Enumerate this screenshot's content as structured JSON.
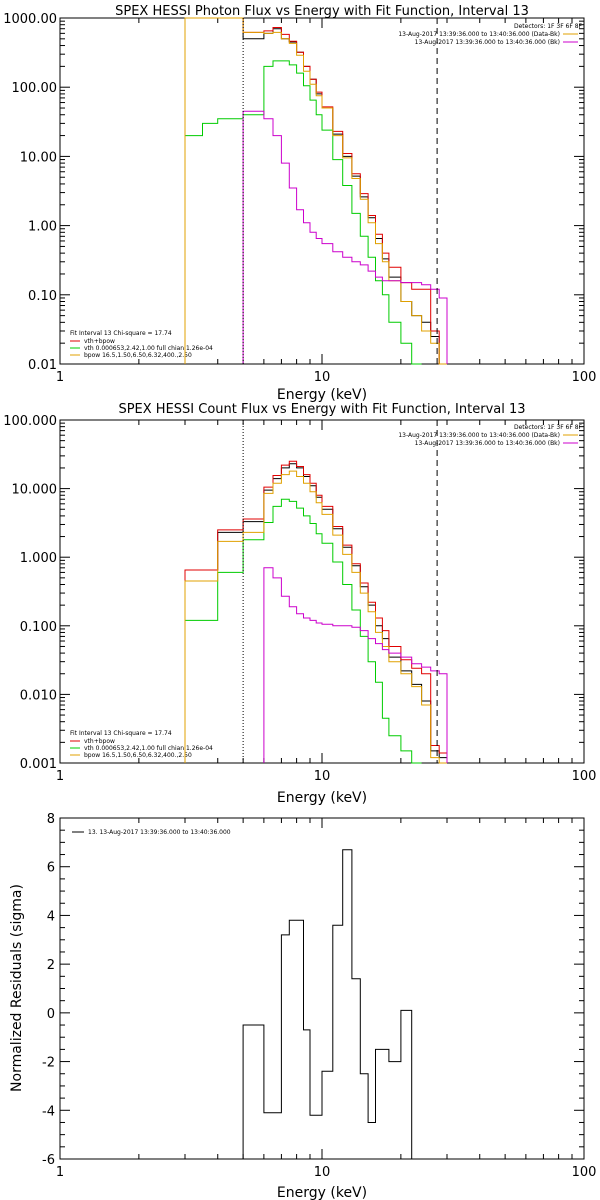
{
  "colors": {
    "bg": "#ffffff",
    "axis": "#000000",
    "total": "#000000",
    "sum": "#e00000",
    "vth": "#00cc00",
    "bpow": "#e0a000",
    "bk": "#cc00cc"
  },
  "chart_data": [
    {
      "type": "line",
      "title": "SPEX HESSI Photon Flux vs Energy with Fit Function, Interval 13",
      "xlabel": "Energy (keV)",
      "ylabel": "",
      "xscale": "log",
      "yscale": "log",
      "xlim": [
        1,
        100
      ],
      "ylim": [
        0.01,
        1000
      ],
      "xticks": [
        "1",
        "10",
        "100"
      ],
      "yticks": [
        "0.01",
        "0.10",
        "1.00",
        "10.00",
        "100.00",
        "1000.00"
      ],
      "top_right": [
        "Detectors: 1F 3F 6F 8F",
        "13-Aug-2017 13:39:36.000 to 13:40:36.000 (Data-Bk)",
        "13-Aug-2017 13:39:36.000 to 13:40:36.000 (Bk)"
      ],
      "legend": [
        "Fit Interval 13   Chi-square = 17.74",
        "vth+bpow",
        "vth 0.000653,2.42,1.00  full chian 1.26e-04",
        "bpow 16.5,1.50,6.50,6.32,400.,2.50"
      ],
      "edges": [
        3,
        3.5,
        4,
        4.5,
        5,
        6,
        6.5,
        7,
        7.5,
        8,
        8.5,
        9,
        9.5,
        10,
        11,
        12,
        13,
        14,
        15,
        16,
        17,
        18,
        20,
        22,
        24,
        26,
        28,
        30
      ],
      "series": [
        {
          "key": "total",
          "values": [
            1000,
            1000,
            1000,
            1000,
            500,
            600,
            700,
            500,
            450,
            320,
            200,
            130,
            80,
            50,
            21,
            10,
            5.2,
            2.6,
            1.3,
            0.65,
            0.33,
            0.18,
            0.08,
            0.05,
            0.04,
            0.025,
            0.009
          ]
        },
        {
          "key": "sum",
          "values": [
            1000,
            1000,
            1000,
            1000,
            620,
            650,
            730,
            580,
            460,
            320,
            200,
            130,
            85,
            52,
            23,
            11,
            5.6,
            2.9,
            1.4,
            0.75,
            0.4,
            0.25,
            0.15,
            0.12,
            0.12,
            0.03,
            0.01
          ]
        },
        {
          "key": "vth",
          "values": [
            20,
            30,
            35,
            35,
            40,
            200,
            240,
            240,
            210,
            160,
            105,
            65,
            40,
            24,
            9,
            3.8,
            1.5,
            0.7,
            0.35,
            0.16,
            0.1,
            0.04,
            0.02,
            0.01
          ]
        },
        {
          "key": "bpow",
          "values": [
            1000,
            1000,
            1000,
            1000,
            620,
            600,
            620,
            500,
            430,
            290,
            170,
            110,
            75,
            50,
            20,
            9.5,
            4.8,
            2.4,
            1.1,
            0.55,
            0.3,
            0.16,
            0.08,
            0.05,
            0.03,
            0.02,
            0.01
          ]
        },
        {
          "key": "bk",
          "start": 4,
          "values": [
            45,
            35,
            20,
            8,
            3.5,
            1.7,
            1.1,
            0.8,
            0.65,
            0.55,
            0.42,
            0.35,
            0.3,
            0.27,
            0.22,
            0.18,
            0.16,
            0.16,
            0.15,
            0.15,
            0.14,
            0.12,
            0.09
          ]
        }
      ],
      "vlines": [
        {
          "x": 5,
          "style": "dotted"
        },
        {
          "x": 27.5,
          "style": "dashed"
        }
      ]
    },
    {
      "type": "line",
      "title": "SPEX HESSI Count Flux vs Energy with Fit Function, Interval 13",
      "xlabel": "Energy (keV)",
      "ylabel": "",
      "xscale": "log",
      "yscale": "log",
      "xlim": [
        1,
        100
      ],
      "ylim": [
        0.001,
        100
      ],
      "xticks": [
        "1",
        "10",
        "100"
      ],
      "yticks": [
        "0.001",
        "0.010",
        "0.100",
        "1.000",
        "10.000",
        "100.000"
      ],
      "top_right": [
        "Detectors: 1F 3F 6F 8F",
        "13-Aug-2017 13:39:36.000 to 13:40:36.000 (Data-Bk)",
        "13-Aug-2017 13:39:36.000 to 13:40:36.000 (Bk)"
      ],
      "legend": [
        "Fit Interval 13   Chi-square = 17.74",
        "vth+bpow",
        "vth 0.000653,2.42,1.00  full chian 1.26e-04",
        "bpow 16.5,1.50,6.50,6.32,400.,2.50"
      ],
      "edges": [
        3,
        4,
        5,
        6,
        6.5,
        7,
        7.5,
        8,
        8.5,
        9,
        9.5,
        10,
        11,
        12,
        13,
        14,
        15,
        16,
        17,
        18,
        20,
        22,
        24,
        26,
        28,
        30
      ],
      "series": [
        {
          "key": "total",
          "values": [
            0.65,
            2.3,
            3.3,
            9.5,
            14,
            20,
            23,
            20,
            15,
            11,
            7.5,
            5,
            2.6,
            1.4,
            0.75,
            0.37,
            0.2,
            0.1,
            0.065,
            0.035,
            0.022,
            0.014,
            0.008,
            0.0015,
            0.0012
          ]
        },
        {
          "key": "sum",
          "values": [
            0.65,
            2.5,
            3.6,
            10.5,
            15.5,
            22,
            25,
            21,
            16,
            12,
            8,
            5.5,
            2.8,
            1.5,
            0.8,
            0.42,
            0.22,
            0.13,
            0.085,
            0.05,
            0.032,
            0.024,
            0.02,
            0.0018,
            0.0014
          ]
        },
        {
          "key": "vth",
          "values": [
            0.12,
            0.6,
            1.8,
            3.2,
            5.5,
            7,
            6.5,
            5.2,
            4,
            3.1,
            2.2,
            1.6,
            0.85,
            0.4,
            0.17,
            0.07,
            0.03,
            0.015,
            0.0045,
            0.0025,
            0.0015,
            0.001
          ]
        },
        {
          "key": "bpow",
          "values": [
            0.45,
            1.7,
            2.3,
            8.5,
            12,
            16,
            18,
            15,
            12,
            9,
            6.2,
            4.2,
            2.1,
            1.1,
            0.6,
            0.3,
            0.16,
            0.08,
            0.05,
            0.03,
            0.02,
            0.013,
            0.007,
            0.0012,
            0.001
          ]
        },
        {
          "key": "bk",
          "start": 3,
          "values": [
            0.7,
            0.5,
            0.27,
            0.19,
            0.15,
            0.13,
            0.12,
            0.11,
            0.105,
            0.1,
            0.1,
            0.095,
            0.085,
            0.065,
            0.055,
            0.045,
            0.04,
            0.035,
            0.028,
            0.025,
            0.022,
            0.02
          ]
        }
      ],
      "vlines": [
        {
          "x": 5,
          "style": "dotted"
        },
        {
          "x": 27.5,
          "style": "dashed"
        }
      ]
    },
    {
      "type": "line",
      "title": "",
      "xlabel": "Energy (keV)",
      "ylabel": "Normalized Residuals (sigma)",
      "xscale": "log",
      "yscale": "linear",
      "xlim": [
        1,
        100
      ],
      "ylim": [
        -6,
        8
      ],
      "xticks": [
        "1",
        "10",
        "100"
      ],
      "yticks": [
        "-6",
        "-4",
        "-2",
        "0",
        "2",
        "4",
        "6",
        "8"
      ],
      "legend": [
        "13. 13-Aug-2017 13:39:36.000 to 13:40:36.000"
      ],
      "edges": [
        5,
        6,
        7,
        7.5,
        8.5,
        9,
        10,
        11,
        12,
        13,
        14,
        15,
        16,
        18,
        20,
        22,
        24,
        26,
        28
      ],
      "series": [
        {
          "key": "total",
          "values": [
            -0.5,
            -4.1,
            3.2,
            3.8,
            -0.7,
            -4.2,
            -2.4,
            3.6,
            6.7,
            1.4,
            -2.5,
            -4.5,
            -1.5,
            -2.0,
            0.1,
            -6
          ]
        }
      ]
    }
  ]
}
